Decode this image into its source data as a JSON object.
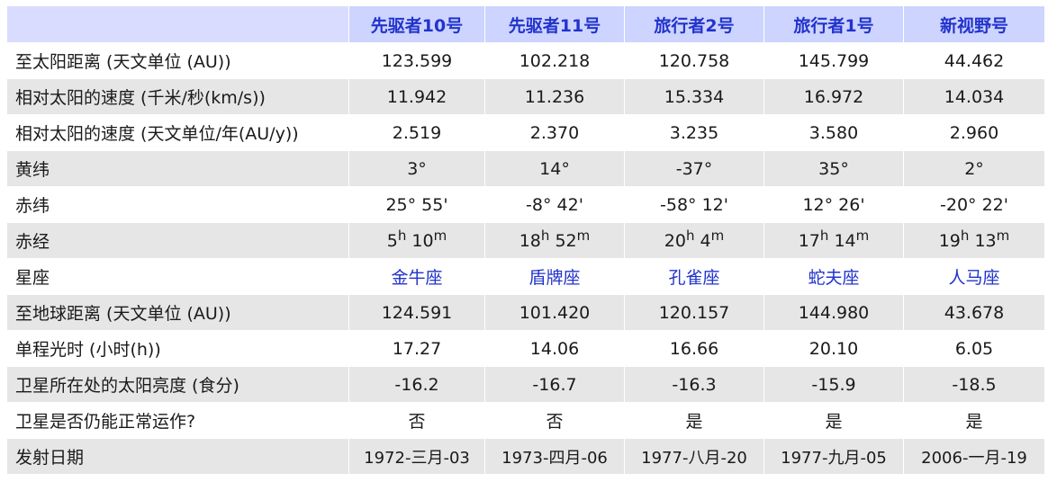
{
  "headers": [
    "",
    "先驱者10号",
    "先驱者11号",
    "旅行者2号",
    "旅行者1号",
    "新视野号"
  ],
  "rows": [
    {
      "label": "至太阳距离 (天文单位 (AU))",
      "values": [
        "123.599",
        "102.218",
        "120.758",
        "145.799",
        "44.462"
      ]
    },
    {
      "label": "相对太阳的速度 (千米/秒(km/s))",
      "values": [
        "11.942",
        "11.236",
        "15.334",
        "16.972",
        "14.034"
      ]
    },
    {
      "label": "相对太阳的速度 (天文单位/年(AU/y))",
      "values": [
        "2.519",
        "2.370",
        "3.235",
        "3.580",
        "2.960"
      ]
    },
    {
      "label": "黄纬",
      "values": [
        "3°",
        "14°",
        "-37°",
        "35°",
        "2°"
      ]
    },
    {
      "label": "赤纬",
      "values": [
        "25° 55'",
        "-8° 42'",
        "-58° 12'",
        "12° 26'",
        "-20° 22'"
      ]
    },
    {
      "label": "赤经",
      "ra": [
        {
          "h": "5",
          "hu": "h",
          "m": "10",
          "mu": "m"
        },
        {
          "h": "18",
          "hu": "h",
          "m": "52",
          "mu": "m"
        },
        {
          "h": "20",
          "hu": "h",
          "m": "4",
          "mu": "m"
        },
        {
          "h": "17",
          "hu": "h",
          "m": "14",
          "mu": "m"
        },
        {
          "h": "19",
          "hu": "h",
          "m": "13",
          "mu": "m"
        }
      ]
    },
    {
      "label": "星座",
      "values": [
        "金牛座",
        "盾牌座",
        "孔雀座",
        "蛇夫座",
        "人马座"
      ]
    },
    {
      "label": "至地球距离 (天文单位 (AU))",
      "values": [
        "124.591",
        "101.420",
        "120.157",
        "144.980",
        "43.678"
      ]
    },
    {
      "label": "单程光时 (小时(h))",
      "values": [
        "17.27",
        "14.06",
        "16.66",
        "20.10",
        "6.05"
      ]
    },
    {
      "label": "卫星所在处的太阳亮度 (食分)",
      "values": [
        "-16.2",
        "-16.7",
        "-16.3",
        "-15.9",
        "-18.5"
      ]
    },
    {
      "label": "卫星是否仍能正常运作?",
      "values": [
        "否",
        "否",
        "是",
        "是",
        "是"
      ]
    },
    {
      "label": "发射日期",
      "values": [
        "1972-三月-03",
        "1973-四月-06",
        "1977-八月-20",
        "1977-九月-05",
        "2006-一月-19"
      ]
    }
  ],
  "colors": {
    "header_bg": "#cdd4ff",
    "header_text": "#2233cc",
    "link_text": "#2233cc",
    "row_alt_bg": "#e6e6e6"
  }
}
